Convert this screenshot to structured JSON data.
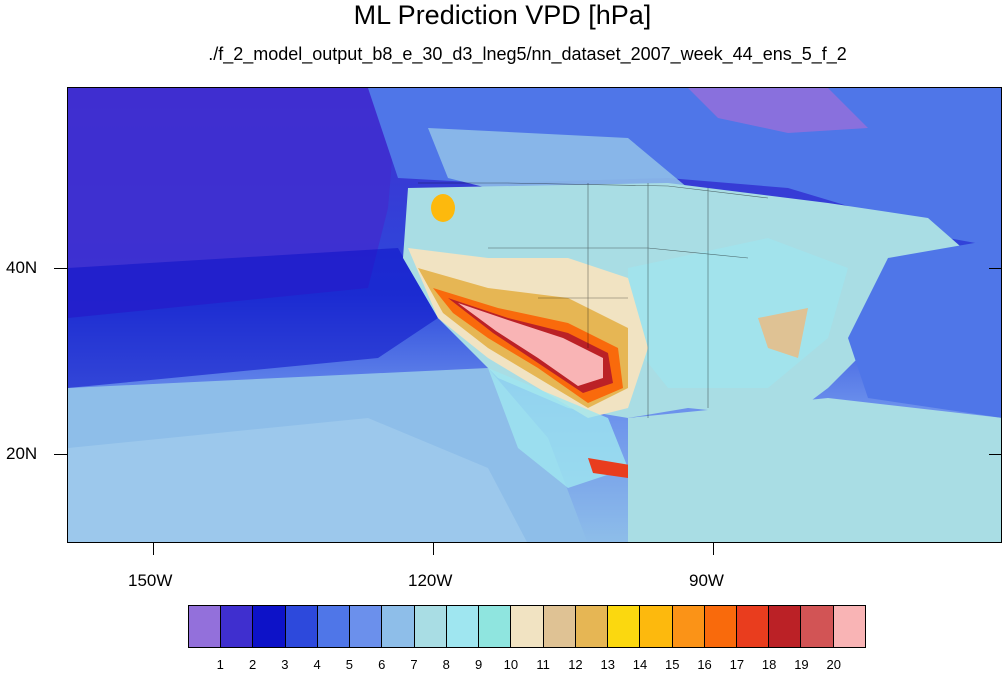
{
  "title": "ML Prediction VPD [hPa]",
  "subtitle": "./f_2_model_output_b8_e_30_d3_lneg5/nn_dataset_2007_week_44_ens_5_f_2",
  "axes": {
    "x_labels": [
      "150W",
      "120W",
      "90W"
    ],
    "y_labels": [
      "40N",
      "20N"
    ]
  },
  "colorbar": {
    "labels": [
      "1",
      "2",
      "3",
      "4",
      "5",
      "6",
      "7",
      "8",
      "9",
      "10",
      "11",
      "12",
      "13",
      "14",
      "15",
      "16",
      "17",
      "18",
      "19",
      "20"
    ],
    "colors": [
      "#9370db",
      "#3f2fcf",
      "#0d12c8",
      "#2d49dc",
      "#4f76e8",
      "#6b90ec",
      "#8ebee9",
      "#a9dde4",
      "#9fe6f0",
      "#8fe5df",
      "#f1e3c2",
      "#dfc294",
      "#e6b654",
      "#fbd80f",
      "#fdb90d",
      "#fb9317",
      "#f96a0c",
      "#e93d1e",
      "#bb2126",
      "#d25455",
      "#f9b4b5"
    ]
  },
  "legend_title": ""
}
